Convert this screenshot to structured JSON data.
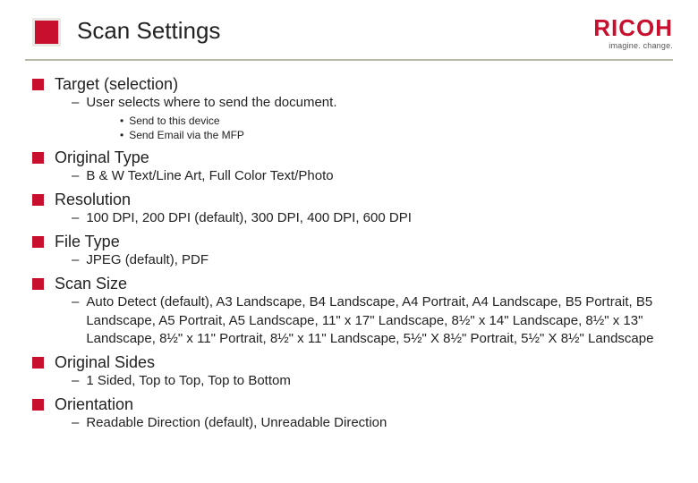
{
  "header": {
    "title": "Scan Settings",
    "logo_text": "RICOH",
    "logo_tagline": "imagine. change."
  },
  "items": [
    {
      "title": "Target (selection)",
      "subs": [
        {
          "text": "User selects where to send the document.",
          "subsubs": [
            {
              "text": "Send to this device"
            },
            {
              "text": "Send Email via the MFP"
            }
          ]
        }
      ]
    },
    {
      "title": "Original Type",
      "subs": [
        {
          "text": "B & W Text/Line Art, Full Color Text/Photo"
        }
      ]
    },
    {
      "title": "Resolution",
      "subs": [
        {
          "text": "100 DPI, 200 DPI (default), 300 DPI, 400 DPI, 600 DPI"
        }
      ]
    },
    {
      "title": "File Type",
      "subs": [
        {
          "text": "JPEG (default), PDF"
        }
      ]
    },
    {
      "title": "Scan Size",
      "subs": [
        {
          "text": "Auto Detect (default), A3 Landscape, B4 Landscape, A4 Portrait, A4 Landscape, B5 Portrait, B5 Landscape, A5 Portrait, A5 Landscape, 11\" x 17\" Landscape, 8½\" x 14\" Landscape, 8½\" x 13\" Landscape, 8½\" x 11\" Portrait, 8½\" x 11\" Landscape, 5½\" X 8½\" Portrait, 5½\" X 8½\" Landscape"
        }
      ]
    },
    {
      "title": "Original Sides",
      "subs": [
        {
          "text": "1 Sided, Top to Top, Top to Bottom"
        }
      ]
    },
    {
      "title": "Orientation",
      "subs": [
        {
          "text": "Readable Direction (default), Unreadable Direction"
        }
      ]
    }
  ],
  "colors": {
    "accent": "#c8102e",
    "divider": "#b9b9a9",
    "text": "#222222",
    "background": "#ffffff"
  }
}
